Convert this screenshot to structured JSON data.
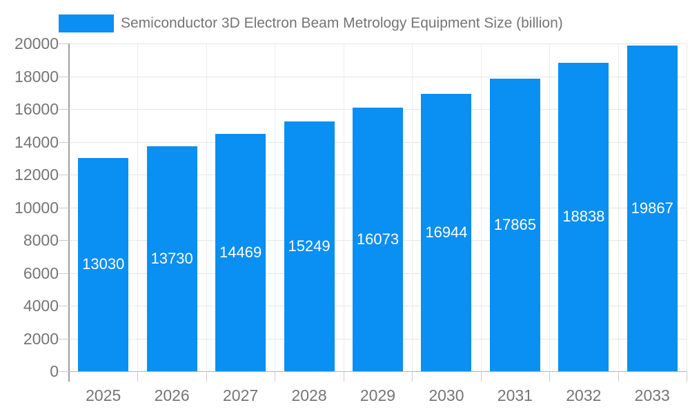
{
  "legend": {
    "label": "Semiconductor 3D Electron Beam Metrology Equipment Size (billion)",
    "swatch_color": "#0a8ff2"
  },
  "chart_data": {
    "type": "bar",
    "title": "Semiconductor 3D Electron Beam Metrology Equipment Size (billion)",
    "categories": [
      "2025",
      "2026",
      "2027",
      "2028",
      "2029",
      "2030",
      "2031",
      "2032",
      "2033"
    ],
    "values": [
      13030,
      13730,
      14469,
      15249,
      16073,
      16944,
      17865,
      18838,
      19867
    ],
    "value_labels": [
      "13030",
      "13730",
      "14469",
      "15249",
      "16073",
      "16944",
      "17865",
      "18838",
      "19867"
    ],
    "xlabel": "",
    "ylabel": "",
    "ylim": [
      0,
      20000
    ],
    "ytick_step": 2000,
    "yticks": [
      0,
      2000,
      4000,
      6000,
      8000,
      10000,
      12000,
      14000,
      16000,
      18000,
      20000
    ],
    "grid": true,
    "legend_position": "top",
    "bar_color": "#0a8ff2",
    "value_label_color": "#ffffff",
    "axis_text_color": "#757575",
    "background_color": "#ffffff"
  }
}
